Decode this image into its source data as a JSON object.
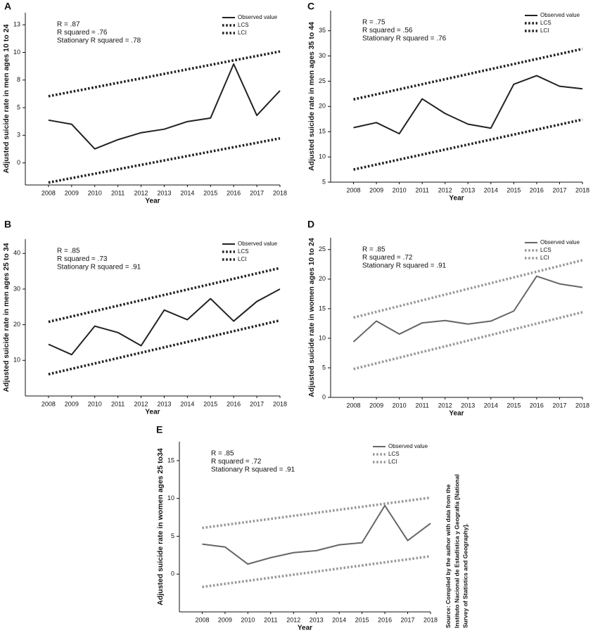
{
  "chart_data": [
    {
      "type": "line",
      "panel": "A",
      "y_label": "Adjusted suicide rate in men ages 10 to 24",
      "x_label": "Year",
      "annotations": [
        "R = .87",
        "R squared = .76",
        "Stationary R squared = .78"
      ],
      "x": [
        2008,
        2009,
        2010,
        2011,
        2012,
        2013,
        2014,
        2015,
        2016,
        2017,
        2018
      ],
      "xlim": [
        2007,
        2018
      ],
      "xticks": [
        2008,
        2009,
        2010,
        2011,
        2012,
        2013,
        2014,
        2015,
        2016,
        2017,
        2018
      ],
      "ylim": [
        -2,
        13.6
      ],
      "yticks": [
        0,
        {
          "value": 2.5,
          "label": "3"
        },
        5,
        {
          "value": 7.5,
          "label": "8"
        },
        10,
        {
          "value": 12.5,
          "label": "13"
        }
      ],
      "series": [
        {
          "name": "Observed value",
          "color": "#222222",
          "style": "solid",
          "values": [
            3.87,
            3.5,
            1.27,
            2.1,
            2.73,
            3.05,
            3.74,
            4.06,
            8.95,
            4.3,
            6.54
          ]
        },
        {
          "name": "LCS",
          "color": "#222222",
          "style": "dotted",
          "values": [
            6.03,
            6.44,
            6.84,
            7.25,
            7.65,
            8.06,
            8.47,
            8.87,
            9.28,
            9.68,
            10.09
          ]
        },
        {
          "name": "LCI",
          "color": "#222222",
          "style": "dotted",
          "values": [
            -1.78,
            -1.38,
            -0.98,
            -0.58,
            -0.18,
            0.22,
            0.62,
            1.02,
            1.42,
            1.82,
            2.22
          ]
        }
      ]
    },
    {
      "type": "line",
      "panel": "B",
      "y_label": "Adjusted suicide rate in men ages 25 to 34",
      "x_label": "Year",
      "annotations": [
        "R = .85",
        "R squared = .73",
        "Stationary R squared = .91"
      ],
      "x": [
        2008,
        2009,
        2010,
        2011,
        2012,
        2013,
        2014,
        2015,
        2016,
        2017,
        2018
      ],
      "xlim": [
        2007,
        2018
      ],
      "xticks": [
        2008,
        2009,
        2010,
        2011,
        2012,
        2013,
        2014,
        2015,
        2016,
        2017,
        2018
      ],
      "ylim": [
        0,
        44
      ],
      "yticks": [
        10,
        20,
        30,
        40
      ],
      "series": [
        {
          "name": "Observed value",
          "color": "#222222",
          "style": "solid",
          "values": [
            14.5,
            11.6,
            19.6,
            17.8,
            14.1,
            24.1,
            21.4,
            27.3,
            21,
            26.5,
            30
          ]
        },
        {
          "name": "LCS",
          "color": "#222222",
          "style": "dotted",
          "values": [
            20.8,
            22.31,
            23.82,
            25.33,
            26.84,
            28.35,
            29.86,
            31.37,
            32.88,
            34.39,
            35.9
          ]
        },
        {
          "name": "LCI",
          "color": "#222222",
          "style": "dotted",
          "values": [
            6.1,
            7.61,
            9.12,
            10.63,
            12.14,
            13.65,
            15.16,
            16.67,
            18.18,
            19.69,
            21.2
          ]
        }
      ]
    },
    {
      "type": "line",
      "panel": "C",
      "y_label": "Adjusted suicide rate in men ages 35 to 44",
      "x_label": "Year",
      "annotations": [
        "R = .75",
        "R squared = .56",
        "Stationary R squared = .76"
      ],
      "x": [
        2008,
        2009,
        2010,
        2011,
        2012,
        2013,
        2014,
        2015,
        2016,
        2017,
        2018
      ],
      "xlim": [
        2007,
        2018
      ],
      "xticks": [
        2008,
        2009,
        2010,
        2011,
        2012,
        2013,
        2014,
        2015,
        2016,
        2017,
        2018
      ],
      "ylim": [
        5,
        39
      ],
      "yticks": [
        5,
        10,
        15,
        20,
        25,
        30,
        35
      ],
      "series": [
        {
          "name": "Observed value",
          "color": "#222222",
          "style": "solid",
          "values": [
            15.8,
            16.8,
            14.6,
            21.5,
            18.6,
            16.5,
            15.7,
            24.4,
            26.1,
            24,
            23.5
          ]
        },
        {
          "name": "LCS",
          "color": "#222222",
          "style": "dotted",
          "values": [
            21.4,
            22.4,
            23.4,
            24.4,
            25.4,
            26.4,
            27.4,
            28.4,
            29.4,
            30.4,
            31.4
          ]
        },
        {
          "name": "LCI",
          "color": "#222222",
          "style": "dotted",
          "values": [
            7.5,
            8.49,
            9.48,
            10.47,
            11.46,
            12.45,
            13.44,
            14.43,
            15.42,
            16.41,
            17.4
          ]
        }
      ]
    },
    {
      "type": "line",
      "panel": "D",
      "y_label": "Adjusted suicide rate in women ages 10 to 24",
      "x_label": "Year",
      "annotations": [
        "R = .85",
        "R squared = .72",
        "Stationary R squared = .91"
      ],
      "x": [
        2008,
        2009,
        2010,
        2011,
        2012,
        2013,
        2014,
        2015,
        2016,
        2017,
        2018
      ],
      "xlim": [
        2007,
        2018
      ],
      "xticks": [
        2008,
        2009,
        2010,
        2011,
        2012,
        2013,
        2014,
        2015,
        2016,
        2017,
        2018
      ],
      "ylim": [
        0,
        27
      ],
      "yticks": [
        0,
        5,
        10,
        15,
        20,
        25
      ],
      "series": [
        {
          "name": "Observed value",
          "color": "#666666",
          "style": "solid",
          "values": [
            9.4,
            12.9,
            10.7,
            12.6,
            13,
            12.4,
            12.9,
            14.6,
            20.5,
            19.2,
            18.6
          ]
        },
        {
          "name": "LCS",
          "color": "#999999",
          "style": "dotted",
          "values": [
            13.5,
            14.47,
            15.44,
            16.41,
            17.38,
            18.35,
            19.32,
            20.29,
            21.26,
            22.23,
            23.2
          ]
        },
        {
          "name": "LCI",
          "color": "#999999",
          "style": "dotted",
          "values": [
            4.8,
            5.76,
            6.72,
            7.68,
            8.64,
            9.6,
            10.56,
            11.52,
            12.48,
            13.44,
            14.4
          ]
        }
      ]
    },
    {
      "type": "line",
      "panel": "E",
      "y_label": "Adjusted suicide rate in women ages 25 to34",
      "x_label": "Year",
      "annotations": [
        "R = .85",
        "R squared = .72",
        "Stationary R squared = .91"
      ],
      "x": [
        2008,
        2009,
        2010,
        2011,
        2012,
        2013,
        2014,
        2015,
        2016,
        2017,
        2018
      ],
      "xlim": [
        2007,
        2018
      ],
      "xticks": [
        2008,
        2009,
        2010,
        2011,
        2012,
        2013,
        2014,
        2015,
        2016,
        2017,
        2018
      ],
      "ylim": [
        -5,
        17.5
      ],
      "yticks": [
        0,
        5,
        10,
        15
      ],
      "series": [
        {
          "name": "Observed value",
          "color": "#666666",
          "style": "solid",
          "values": [
            3.96,
            3.58,
            1.32,
            2.17,
            2.83,
            3.1,
            3.87,
            4.15,
            9.06,
            4.43,
            6.7
          ]
        },
        {
          "name": "LCS",
          "color": "#999999",
          "style": "dotted",
          "values": [
            6.1,
            6.5,
            6.9,
            7.3,
            7.7,
            8.1,
            8.5,
            8.9,
            9.3,
            9.7,
            10.1
          ]
        },
        {
          "name": "LCI",
          "color": "#999999",
          "style": "dotted",
          "values": [
            -1.7,
            -1.29,
            -0.89,
            -0.48,
            -0.08,
            0.33,
            0.74,
            1.14,
            1.55,
            1.95,
            2.36
          ]
        }
      ]
    }
  ],
  "source": {
    "label": "Source:",
    "lines": [
      "Compiled by the author with data from the",
      "Instituto Nacional de Estadística y Geografía [National",
      "Survey of Statistics and Geography]."
    ]
  }
}
